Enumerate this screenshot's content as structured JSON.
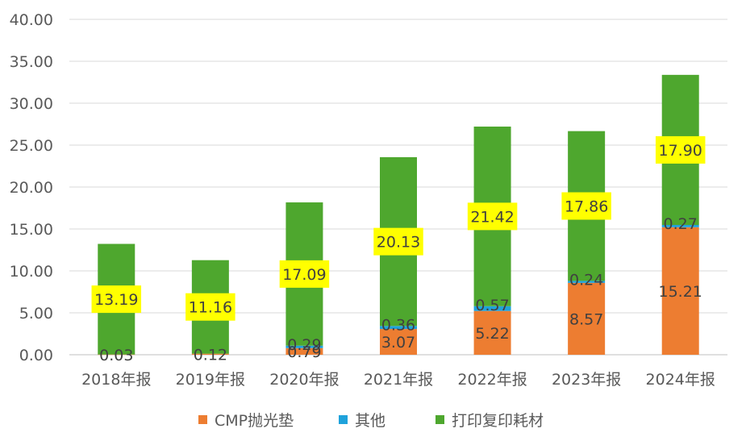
{
  "chart_data": {
    "type": "stacked-bar",
    "title": "",
    "xlabel": "",
    "ylabel": "",
    "ylim": [
      0,
      40
    ],
    "yticks": [
      "0.00",
      "5.00",
      "10.00",
      "15.00",
      "20.00",
      "25.00",
      "30.00",
      "35.00",
      "40.00"
    ],
    "grid": true,
    "legend_position": "bottom",
    "categories": [
      "2018年报",
      "2019年报",
      "2020年报",
      "2021年报",
      "2022年报",
      "2023年报",
      "2024年报"
    ],
    "series": [
      {
        "name": "CMP抛光垫",
        "color": "#ED7D31",
        "values": [
          0.03,
          0.12,
          0.79,
          3.07,
          5.22,
          8.57,
          15.21
        ],
        "labels": [
          "0.03",
          "0.12",
          "0.79",
          "3.07",
          "5.22",
          "8.57",
          "15.21"
        ]
      },
      {
        "name": "其他",
        "color": "#1FA2DB",
        "values": [
          0,
          0,
          0.29,
          0.36,
          0.57,
          0.24,
          0.27
        ],
        "labels": [
          "",
          "",
          "0.29",
          "0.36",
          "0.57",
          "0.24",
          "0.27"
        ]
      },
      {
        "name": "打印复印耗材",
        "color": "#4EA72E",
        "values": [
          13.19,
          11.16,
          17.09,
          20.13,
          21.42,
          17.86,
          17.9
        ],
        "labels": [
          "13.19",
          "11.16",
          "17.09",
          "20.13",
          "21.42",
          "17.86",
          "17.90"
        ]
      }
    ],
    "label_highlight_color": "#FFFF00",
    "gridline_color": "#D9D9D9"
  }
}
